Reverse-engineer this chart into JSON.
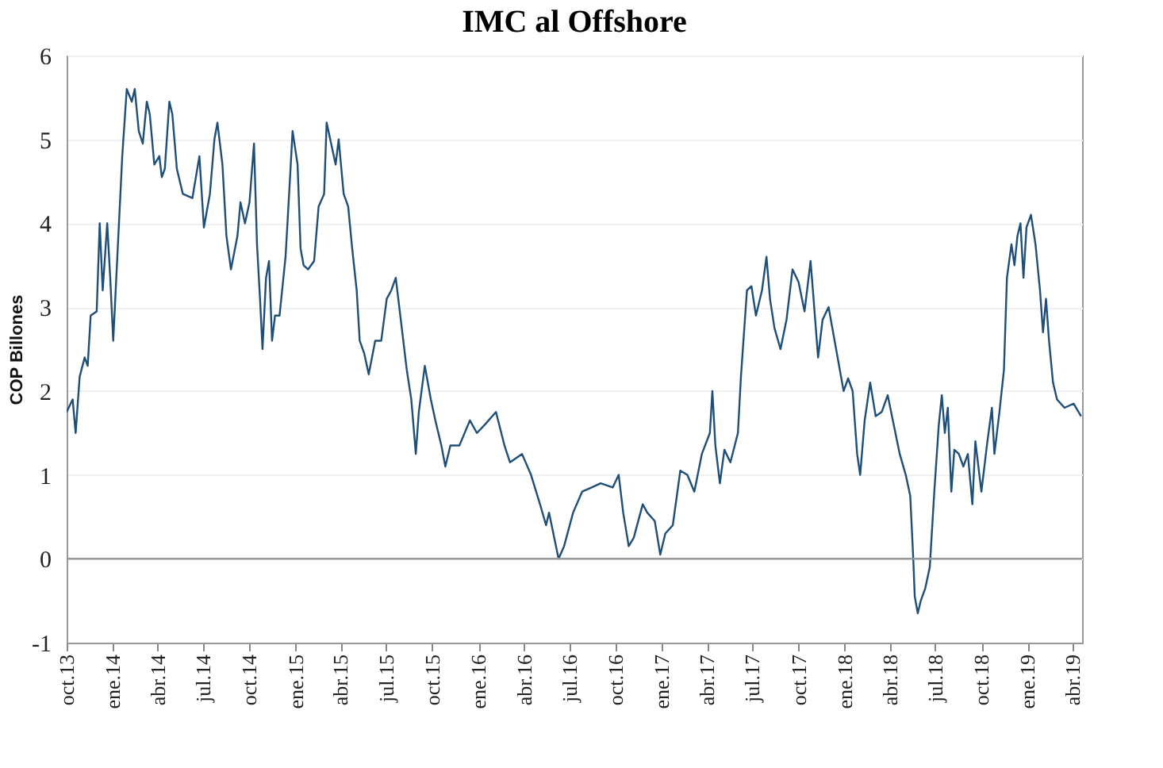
{
  "chart_data": {
    "type": "line",
    "title": "IMC al Offshore",
    "ylabel": "COP Billones",
    "x": [
      "2013-10-01",
      "2013-10-13",
      "2013-10-19",
      "2013-10-27",
      "2013-11-06",
      "2013-11-12",
      "2013-11-18",
      "2013-11-30",
      "2013-12-06",
      "2013-12-12",
      "2013-12-21",
      "2013-12-27",
      "2014-01-02",
      "2014-01-11",
      "2014-01-20",
      "2014-01-29",
      "2014-02-08",
      "2014-02-14",
      "2014-02-22",
      "2014-03-02",
      "2014-03-10",
      "2014-03-16",
      "2014-03-25",
      "2014-04-04",
      "2014-04-09",
      "2014-04-15",
      "2014-04-24",
      "2014-04-30",
      "2014-05-09",
      "2014-05-21",
      "2014-06-09",
      "2014-06-23",
      "2014-07-02",
      "2014-07-14",
      "2014-07-23",
      "2014-07-29",
      "2014-08-08",
      "2014-08-16",
      "2014-08-25",
      "2014-09-07",
      "2014-09-13",
      "2014-09-22",
      "2014-10-01",
      "2014-10-10",
      "2014-10-16",
      "2014-10-22",
      "2014-10-27",
      "2014-11-03",
      "2014-11-09",
      "2014-11-15",
      "2014-11-21",
      "2014-11-30",
      "2014-12-12",
      "2014-12-21",
      "2014-12-26",
      "2015-01-05",
      "2015-01-11",
      "2015-01-17",
      "2015-01-26",
      "2015-02-07",
      "2015-02-16",
      "2015-02-27",
      "2015-03-04",
      "2015-03-13",
      "2015-03-22",
      "2015-03-28",
      "2015-04-07",
      "2015-04-16",
      "2015-04-24",
      "2015-05-03",
      "2015-05-09",
      "2015-05-18",
      "2015-05-27",
      "2015-06-09",
      "2015-06-21",
      "2015-07-02",
      "2015-07-11",
      "2015-07-20",
      "2015-07-29",
      "2015-08-11",
      "2015-08-20",
      "2015-08-29",
      "2015-09-04",
      "2015-09-16",
      "2015-09-28",
      "2015-10-07",
      "2015-10-19",
      "2015-10-27",
      "2015-11-06",
      "2015-11-24",
      "2015-12-15",
      "2015-12-29",
      "2016-01-14",
      "2016-02-05",
      "2016-02-22",
      "2016-03-04",
      "2016-03-28",
      "2016-04-15",
      "2016-05-03",
      "2016-05-15",
      "2016-05-21",
      "2016-06-09",
      "2016-06-20",
      "2016-07-08",
      "2016-07-26",
      "2016-08-14",
      "2016-09-01",
      "2016-09-25",
      "2016-10-07",
      "2016-10-16",
      "2016-10-27",
      "2016-11-06",
      "2016-11-24",
      "2016-12-03",
      "2016-12-18",
      "2016-12-29",
      "2017-01-08",
      "2017-01-23",
      "2017-02-07",
      "2017-02-21",
      "2017-03-07",
      "2017-03-22",
      "2017-04-07",
      "2017-04-12",
      "2017-04-18",
      "2017-04-27",
      "2017-05-06",
      "2017-05-18",
      "2017-06-02",
      "2017-06-08",
      "2017-06-20",
      "2017-06-29",
      "2017-07-08",
      "2017-07-20",
      "2017-07-29",
      "2017-08-05",
      "2017-08-14",
      "2017-08-26",
      "2017-09-07",
      "2017-09-19",
      "2017-10-01",
      "2017-10-13",
      "2017-10-25",
      "2017-10-31",
      "2017-11-09",
      "2017-11-18",
      "2017-11-30",
      "2017-12-12",
      "2017-12-30",
      "2018-01-08",
      "2018-01-17",
      "2018-01-26",
      "2018-02-01",
      "2018-02-10",
      "2018-02-21",
      "2018-03-04",
      "2018-03-16",
      "2018-03-28",
      "2018-04-09",
      "2018-04-21",
      "2018-05-03",
      "2018-05-12",
      "2018-05-18",
      "2018-05-21",
      "2018-05-27",
      "2018-06-02",
      "2018-06-11",
      "2018-06-20",
      "2018-06-29",
      "2018-07-08",
      "2018-07-14",
      "2018-07-20",
      "2018-07-26",
      "2018-08-02",
      "2018-08-08",
      "2018-08-17",
      "2018-08-26",
      "2018-09-04",
      "2018-09-13",
      "2018-09-19",
      "2018-10-01",
      "2018-10-13",
      "2018-10-22",
      "2018-10-27",
      "2018-11-06",
      "2018-11-15",
      "2018-11-21",
      "2018-11-30",
      "2018-12-06",
      "2018-12-12",
      "2018-12-18",
      "2018-12-24",
      "2018-12-30",
      "2019-01-08",
      "2019-01-17",
      "2019-01-26",
      "2019-02-01",
      "2019-02-07",
      "2019-02-13",
      "2019-02-21",
      "2019-03-01",
      "2019-03-16",
      "2019-04-03",
      "2019-04-18"
    ],
    "series": [
      {
        "color": "#1f4e79",
        "values": [
          1.75,
          1.9,
          1.5,
          2.17,
          2.4,
          2.3,
          2.9,
          2.95,
          4.0,
          3.2,
          4.0,
          3.35,
          2.6,
          3.7,
          4.8,
          5.6,
          5.45,
          5.6,
          5.1,
          4.95,
          5.45,
          5.3,
          4.7,
          4.8,
          4.55,
          4.65,
          5.45,
          5.3,
          4.65,
          4.35,
          4.3,
          4.8,
          3.95,
          4.35,
          5.0,
          5.2,
          4.7,
          3.85,
          3.45,
          3.85,
          4.25,
          4.0,
          4.25,
          4.95,
          3.75,
          3.1,
          2.5,
          3.35,
          3.55,
          2.6,
          2.9,
          2.9,
          3.6,
          4.55,
          5.1,
          4.7,
          3.7,
          3.5,
          3.45,
          3.55,
          4.2,
          4.35,
          5.2,
          4.95,
          4.7,
          5.0,
          4.35,
          4.2,
          3.7,
          3.2,
          2.6,
          2.45,
          2.2,
          2.6,
          2.6,
          3.1,
          3.2,
          3.35,
          2.9,
          2.25,
          1.9,
          1.25,
          1.75,
          2.3,
          1.9,
          1.65,
          1.35,
          1.1,
          1.35,
          1.35,
          1.65,
          1.5,
          1.6,
          1.75,
          1.35,
          1.15,
          1.25,
          1.0,
          0.65,
          0.4,
          0.55,
          0.0,
          0.15,
          0.55,
          0.8,
          0.85,
          0.9,
          0.85,
          1.0,
          0.55,
          0.15,
          0.25,
          0.65,
          0.55,
          0.45,
          0.05,
          0.3,
          0.4,
          1.05,
          1.0,
          0.8,
          1.25,
          1.5,
          2.0,
          1.35,
          0.9,
          1.3,
          1.15,
          1.5,
          2.17,
          3.2,
          3.25,
          2.9,
          3.2,
          3.6,
          3.1,
          2.75,
          2.5,
          2.85,
          3.45,
          3.3,
          2.95,
          3.55,
          3.1,
          2.4,
          2.85,
          3.0,
          2.6,
          2.0,
          2.15,
          2.0,
          1.25,
          1.0,
          1.65,
          2.1,
          1.7,
          1.75,
          1.95,
          1.6,
          1.25,
          1.0,
          0.75,
          0.0,
          -0.45,
          -0.65,
          -0.5,
          -0.35,
          -0.1,
          0.8,
          1.6,
          1.95,
          1.5,
          1.8,
          0.8,
          1.3,
          1.25,
          1.1,
          1.25,
          0.65,
          1.4,
          0.8,
          1.4,
          1.8,
          1.25,
          1.75,
          2.25,
          3.35,
          3.75,
          3.5,
          3.85,
          4.0,
          3.35,
          3.95,
          4.1,
          3.75,
          3.2,
          2.7,
          3.1,
          2.6,
          2.1,
          1.9,
          1.8,
          1.85,
          1.7
        ]
      }
    ],
    "xlim": [
      "2013-10-01",
      "2019-04-20"
    ],
    "xticks": [
      {
        "value": "2013-10-01",
        "label": "oct.13"
      },
      {
        "value": "2014-01-01",
        "label": "ene.14"
      },
      {
        "value": "2014-04-01",
        "label": "abr.14"
      },
      {
        "value": "2014-07-01",
        "label": "jul.14"
      },
      {
        "value": "2014-10-01",
        "label": "oct.14"
      },
      {
        "value": "2015-01-01",
        "label": "ene.15"
      },
      {
        "value": "2015-04-01",
        "label": "abr.15"
      },
      {
        "value": "2015-07-01",
        "label": "jul.15"
      },
      {
        "value": "2015-10-01",
        "label": "oct.15"
      },
      {
        "value": "2016-01-01",
        "label": "ene.16"
      },
      {
        "value": "2016-04-01",
        "label": "abr.16"
      },
      {
        "value": "2016-07-01",
        "label": "jul.16"
      },
      {
        "value": "2016-10-01",
        "label": "oct.16"
      },
      {
        "value": "2017-01-01",
        "label": "ene.17"
      },
      {
        "value": "2017-04-01",
        "label": "abr.17"
      },
      {
        "value": "2017-07-01",
        "label": "jul.17"
      },
      {
        "value": "2017-10-01",
        "label": "oct.17"
      },
      {
        "value": "2018-01-01",
        "label": "ene.18"
      },
      {
        "value": "2018-04-01",
        "label": "abr.18"
      },
      {
        "value": "2018-07-01",
        "label": "jul.18"
      },
      {
        "value": "2018-10-01",
        "label": "oct.18"
      },
      {
        "value": "2019-01-01",
        "label": "ene.19"
      },
      {
        "value": "2019-04-01",
        "label": "abr.19"
      }
    ],
    "ylim": [
      -1,
      6
    ],
    "yticks": [
      -1,
      0,
      1,
      2,
      3,
      4,
      5,
      6
    ],
    "ref_lines": [
      {
        "axis": "y",
        "value": 0,
        "color": "#999999"
      }
    ],
    "grid": "y"
  }
}
